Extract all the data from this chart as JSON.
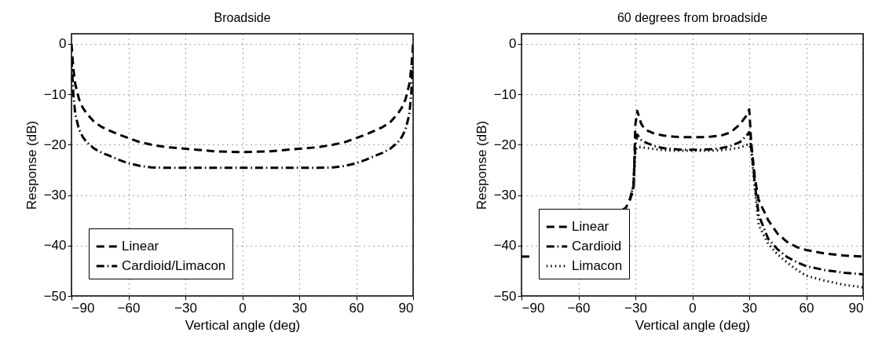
{
  "chart_data": [
    {
      "type": "line",
      "title": "Broadside",
      "xlabel": "Vertical angle (deg)",
      "ylabel": "Response (dB)",
      "xlim": [
        -90,
        90
      ],
      "xticks": [
        -90,
        -60,
        -30,
        0,
        30,
        60,
        90
      ],
      "ylim": [
        -50,
        2
      ],
      "yticks": [
        -50,
        -40,
        -30,
        -20,
        -10,
        0
      ],
      "grid": true,
      "legend": "bottom left",
      "x": [
        -90,
        -89,
        -88,
        -86,
        -84,
        -82,
        -78,
        -74,
        -70,
        -65,
        -60,
        -54,
        -48,
        -40,
        -30,
        -15,
        0,
        15,
        30,
        40,
        48,
        54,
        60,
        65,
        70,
        74,
        78,
        82,
        84,
        86,
        88,
        89,
        90
      ],
      "series": [
        {
          "name": "Linear",
          "color": "#000000",
          "line_style": "dashed",
          "values": [
            0,
            -5,
            -8,
            -11,
            -12.7,
            -13.8,
            -15.5,
            -16.5,
            -17.2,
            -18,
            -18.7,
            -19.5,
            -20,
            -20.5,
            -20.8,
            -21.3,
            -21.5,
            -21.3,
            -20.8,
            -20.5,
            -20,
            -19.5,
            -18.7,
            -18,
            -17.2,
            -16.5,
            -15.5,
            -13.8,
            -12.7,
            -11,
            -8,
            -5,
            0
          ]
        },
        {
          "name": "Cardioid/Limacon",
          "color": "#000000",
          "line_style": "dashdot",
          "values": [
            -3,
            -10,
            -14,
            -17,
            -18.5,
            -19.5,
            -20.8,
            -21.6,
            -22.2,
            -23,
            -23.7,
            -24.2,
            -24.5,
            -24.6,
            -24.6,
            -24.6,
            -24.6,
            -24.6,
            -24.6,
            -24.6,
            -24.5,
            -24.2,
            -23.7,
            -23,
            -22.2,
            -21.6,
            -20.8,
            -19.5,
            -18.5,
            -17,
            -14,
            -10,
            -3
          ]
        }
      ]
    },
    {
      "type": "line",
      "title": "60 degrees from broadside",
      "xlabel": "Vertical angle (deg)",
      "ylabel": "Response (dB)",
      "xlim": [
        -90,
        90
      ],
      "xticks": [
        -90,
        -60,
        -30,
        0,
        30,
        60,
        90
      ],
      "ylim": [
        -50,
        2
      ],
      "yticks": [
        -50,
        -40,
        -30,
        -20,
        -10,
        0
      ],
      "grid": true,
      "legend": "bottom left",
      "series": [
        {
          "name": "Linear",
          "color": "#000000",
          "line_style": "dashed",
          "x": [
            -90,
            -84,
            -60,
            -37,
            -35,
            -33,
            -31,
            -30,
            -29,
            -27,
            -25,
            -20,
            -15,
            -10,
            -5,
            0,
            5,
            10,
            15,
            20,
            25,
            27,
            29,
            30,
            31,
            33,
            35,
            40,
            45,
            50,
            55,
            60,
            70,
            80,
            90
          ],
          "values": [
            -42.2,
            -42.2,
            null,
            -33,
            -32.5,
            -31,
            -29,
            -16,
            -13.3,
            -15.8,
            -17,
            -17.8,
            -18.2,
            -18.4,
            -18.5,
            -18.5,
            -18.5,
            -18.4,
            -18.2,
            -17.6,
            -16,
            -15,
            -14,
            -13,
            -19.5,
            -26.8,
            -31,
            -35,
            -37.7,
            -39.3,
            -40.3,
            -40.9,
            -41.6,
            -42,
            -42.2
          ]
        },
        {
          "name": "Cardioid",
          "color": "#000000",
          "line_style": "dashdot",
          "x": [
            -33,
            -31,
            -30,
            -29,
            -27,
            -25,
            -20,
            -15,
            -10,
            -5,
            0,
            5,
            10,
            15,
            20,
            25,
            27,
            29,
            30,
            31,
            33,
            35,
            40,
            45,
            50,
            55,
            60,
            70,
            80,
            90
          ],
          "values": [
            -31,
            -28,
            -20,
            -18,
            -19,
            -19.5,
            -20.3,
            -20.7,
            -20.9,
            -21,
            -21,
            -21,
            -20.9,
            -20.7,
            -20.3,
            -19.5,
            -18.8,
            -18,
            -17.5,
            -20.5,
            -28,
            -34,
            -38.7,
            -40.8,
            -42.3,
            -43.3,
            -44.1,
            -44.9,
            -45.4,
            -45.7
          ]
        },
        {
          "name": "Limacon",
          "color": "#000000",
          "line_style": "dotted",
          "x": [
            -33,
            -31,
            -30,
            -29,
            -27,
            -25,
            -20,
            -15,
            -10,
            -5,
            0,
            5,
            10,
            15,
            20,
            25,
            27,
            29,
            30,
            31,
            33,
            35,
            40,
            45,
            50,
            55,
            60,
            70,
            80,
            90
          ],
          "values": [
            -31,
            -28,
            -21,
            -20.5,
            -20.5,
            -20.6,
            -20.9,
            -21.1,
            -21.2,
            -21.2,
            -21.2,
            -21.2,
            -21.2,
            -21.1,
            -20.9,
            -20.6,
            -20.3,
            -20,
            -20,
            -21,
            -29,
            -36,
            -39.7,
            -41.8,
            -43.4,
            -44.8,
            -46,
            -47,
            -47.8,
            -48.3
          ]
        }
      ]
    }
  ]
}
